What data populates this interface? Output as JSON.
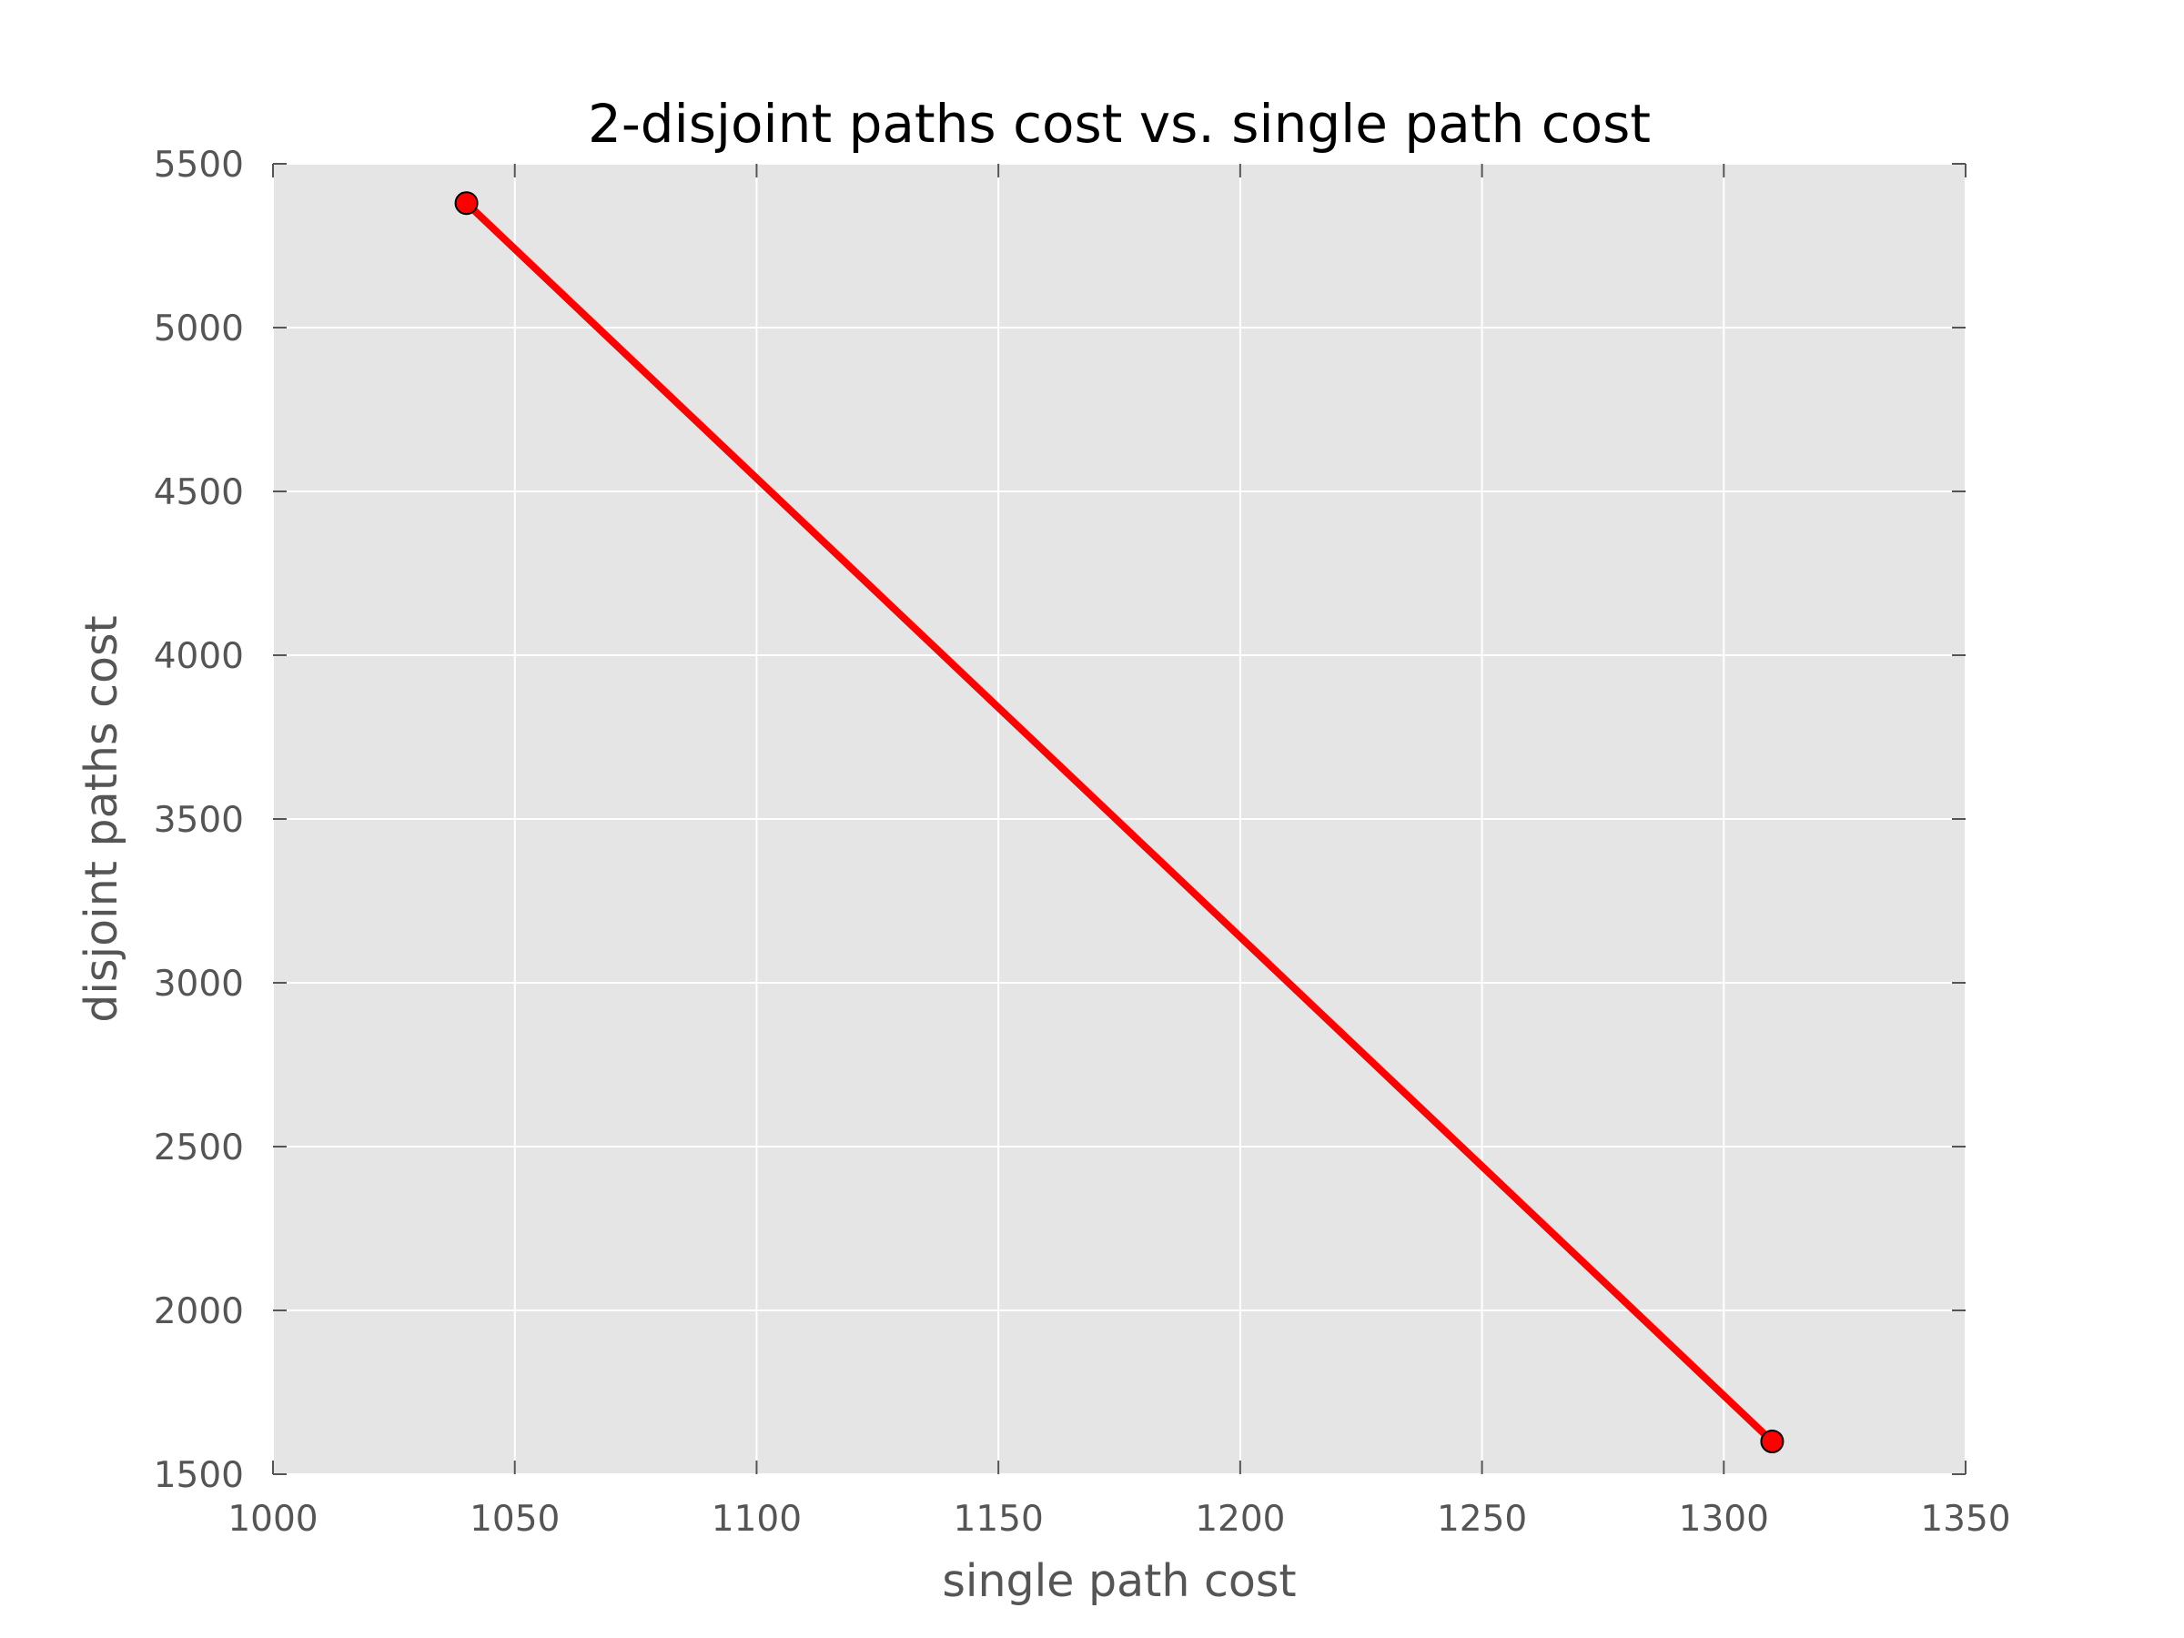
{
  "chart_data": {
    "type": "line",
    "title": "2-disjoint paths cost vs. single path cost",
    "xlabel": "single path cost",
    "ylabel": "disjoint paths cost",
    "xlim": [
      1000,
      1350
    ],
    "ylim": [
      1500,
      5500
    ],
    "x_ticks": [
      "1000",
      "1050",
      "1100",
      "1150",
      "1200",
      "1250",
      "1300",
      "1350"
    ],
    "y_ticks": [
      "1500",
      "2000",
      "2500",
      "3000",
      "3500",
      "4000",
      "4500",
      "5000",
      "5500"
    ],
    "grid": true,
    "legend": "none",
    "series": [
      {
        "color": "#ff0000",
        "marker": "circle",
        "x": [
          1040,
          1310
        ],
        "y": [
          5380,
          1600
        ]
      }
    ],
    "colors": {
      "background": "#e5e5e5",
      "grid": "#ffffff",
      "line": "#ff0000",
      "tick_text": "#555555",
      "title_text": "#000000"
    }
  }
}
